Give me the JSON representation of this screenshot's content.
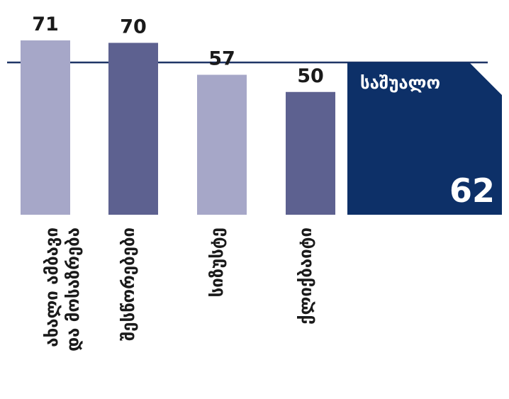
{
  "chart_data": {
    "type": "bar",
    "categories": [
      "ახალი ამბავი და მოსაზრება",
      "შესწორებები",
      "სიზუსტე",
      "ქლიქბაიტი"
    ],
    "category_lines": [
      [
        "ახალი ამბავი",
        "და მოსაზრება"
      ],
      [
        "შესწორებები"
      ],
      [
        "სიზუსტე"
      ],
      [
        "ქლიქბაიტი"
      ]
    ],
    "values": [
      71,
      70,
      57,
      50
    ],
    "value_labels": [
      "71",
      "70",
      "57",
      "50"
    ],
    "ylim": [
      0,
      71
    ],
    "bar_colors": [
      "#a6a7c8",
      "#5d6190",
      "#a6a7c8",
      "#5d6190"
    ],
    "average": {
      "label": "საშუალო",
      "value": 62,
      "value_label": "62",
      "line_color": "#1f3566",
      "box_color": "#0d3068"
    },
    "grid": false,
    "legend": "none"
  }
}
